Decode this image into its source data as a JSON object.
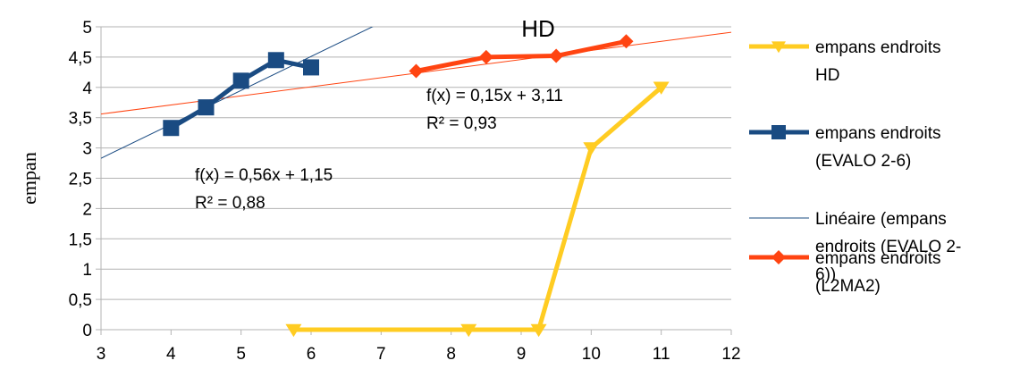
{
  "chart_data": {
    "type": "line",
    "title": "HD",
    "xlabel": "",
    "ylabel": "empan",
    "xlim": [
      3,
      12
    ],
    "ylim": [
      0,
      5
    ],
    "x_ticks": [
      "3",
      "4",
      "5",
      "6",
      "7",
      "8",
      "9",
      "10",
      "11",
      "12"
    ],
    "y_ticks": [
      "0",
      "0,5",
      "1",
      "1,5",
      "2",
      "2,5",
      "3",
      "3,5",
      "4",
      "4,5",
      "5"
    ],
    "grid": "horizontal",
    "legend_position": "right",
    "series": [
      {
        "name": "empans endroits HD",
        "color": "#ffcc22",
        "marker": "triangle-down",
        "points": [
          [
            5.75,
            0
          ],
          [
            8.25,
            0
          ],
          [
            9.25,
            0
          ],
          [
            10,
            3
          ],
          [
            11,
            4
          ]
        ]
      },
      {
        "name": "empans endroits (EVALO 2-6)",
        "color": "#1a4b82",
        "marker": "square",
        "points": [
          [
            4,
            3.33
          ],
          [
            4.5,
            3.67
          ],
          [
            5,
            4.11
          ],
          [
            5.5,
            4.45
          ],
          [
            6,
            4.33
          ]
        ]
      },
      {
        "name": "Linéaire (empans endroits (EVALO 2-6))",
        "color": "#1a4b82",
        "marker": "none",
        "trendline": {
          "slope": 0.56,
          "intercept": 1.15
        }
      },
      {
        "name": "empans endroits (L2MA2)",
        "color": "#ff4411",
        "marker": "diamond",
        "points": [
          [
            7.5,
            4.27
          ],
          [
            8.5,
            4.5
          ],
          [
            9.5,
            4.52
          ],
          [
            10.5,
            4.76
          ]
        ]
      }
    ],
    "trendline_l2ma2": {
      "slope": 0.15,
      "intercept": 3.11,
      "color": "#ff4411"
    },
    "annotations": [
      {
        "lines": [
          "f(x) = 0,15x + 3,11",
          "R² = 0,93"
        ]
      },
      {
        "lines": [
          "f(x) = 0,56x + 1,15",
          "R² = 0,88"
        ]
      }
    ],
    "legend": [
      {
        "lines": [
          "empans endroits",
          "HD"
        ]
      },
      {
        "lines": [
          "empans endroits",
          "(EVALO 2-6)"
        ]
      },
      {
        "lines": [
          "Linéaire (empans",
          "endroits (EVALO 2-",
          "6))"
        ]
      },
      {
        "lines": [
          "empans endroits",
          "(L2MA2)"
        ]
      }
    ]
  }
}
